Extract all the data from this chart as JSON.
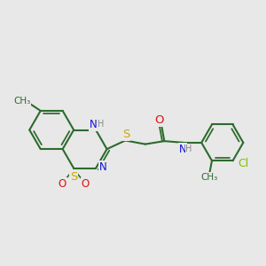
{
  "bg": "#e8e8e8",
  "bond_color": "#2d6b2d",
  "bond_lw": 1.5,
  "colors": {
    "N": "#1010dd",
    "O": "#dd1010",
    "S": "#ccaa00",
    "Cl": "#80c000",
    "H": "#888888",
    "C": "#2d6b2d"
  },
  "fs": 8.5,
  "fs_small": 7.0
}
